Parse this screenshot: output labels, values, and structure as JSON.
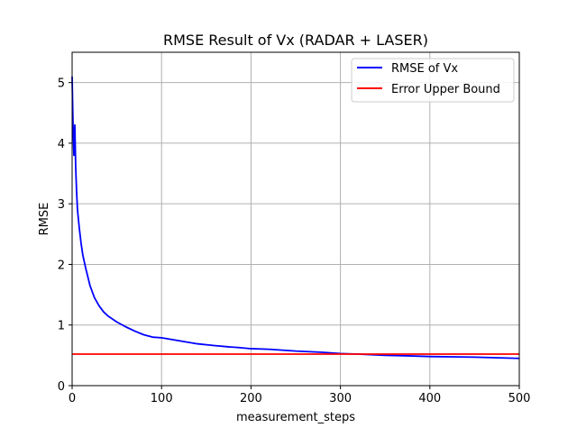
{
  "chart_data": {
    "type": "line",
    "title": "RMSE Result of Vx (RADAR + LASER)",
    "xlabel": "measurement_steps",
    "ylabel": "RMSE",
    "xlim": [
      0,
      500
    ],
    "ylim": [
      0,
      5.5
    ],
    "xticks": [
      0,
      100,
      200,
      300,
      400,
      500
    ],
    "yticks": [
      0,
      1,
      2,
      3,
      4,
      5
    ],
    "xtick_labels": [
      "0",
      "100",
      "200",
      "300",
      "400",
      "500"
    ],
    "ytick_labels": [
      "0",
      "1",
      "2",
      "3",
      "4",
      "5"
    ],
    "grid": true,
    "legend_position": "top-right",
    "series": [
      {
        "name": "RMSE of Vx",
        "color": "#0000ff",
        "x": [
          0,
          1,
          2,
          3,
          4,
          5,
          6,
          8,
          10,
          12,
          15,
          20,
          25,
          30,
          35,
          40,
          50,
          60,
          70,
          80,
          90,
          100,
          120,
          140,
          160,
          175,
          185,
          200,
          220,
          250,
          280,
          300,
          320,
          350,
          380,
          400,
          450,
          500
        ],
        "y": [
          5.1,
          4.3,
          3.8,
          4.3,
          3.6,
          3.2,
          2.9,
          2.6,
          2.35,
          2.15,
          1.95,
          1.65,
          1.45,
          1.32,
          1.22,
          1.15,
          1.05,
          0.97,
          0.9,
          0.84,
          0.8,
          0.79,
          0.74,
          0.69,
          0.66,
          0.64,
          0.63,
          0.61,
          0.6,
          0.57,
          0.55,
          0.53,
          0.52,
          0.5,
          0.49,
          0.48,
          0.47,
          0.45
        ]
      },
      {
        "name": "Error Upper Bound",
        "color": "#ff0000",
        "x": [
          0,
          500
        ],
        "y": [
          0.52,
          0.52
        ]
      }
    ]
  }
}
